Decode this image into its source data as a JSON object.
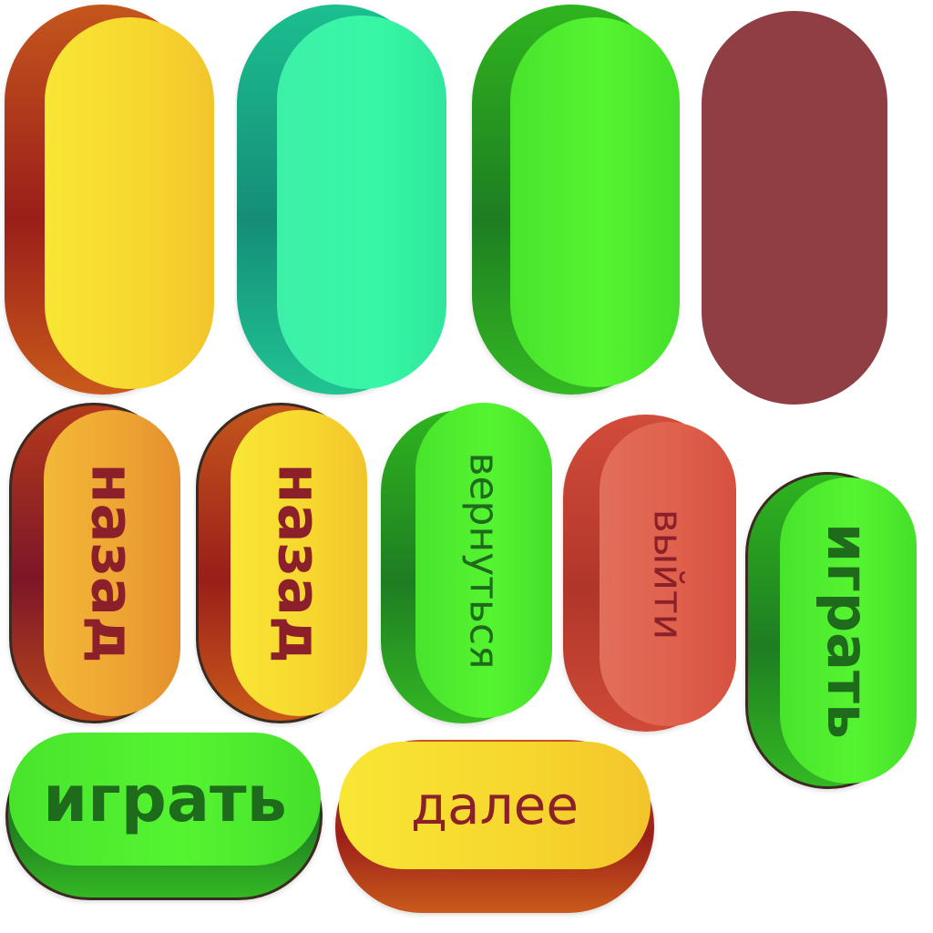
{
  "buttons": {
    "back_orange_label": "назад",
    "back_yellow_label": "назад",
    "return_label": "вернуться",
    "exit_label": "выйти",
    "play_vertical_label": "играть",
    "play_horizontal_label": "играть",
    "next_label": "далее"
  },
  "colors": {
    "yellow_face": "#f7d62e",
    "teal_face": "#37f7a6",
    "green_face": "#55f431",
    "maroon_face": "#8f3f43",
    "orange_face": "#eda333",
    "red_face": "#e0614c",
    "dark_red_text": "#8b1f2a",
    "dark_green_text": "#1f6b1c"
  }
}
